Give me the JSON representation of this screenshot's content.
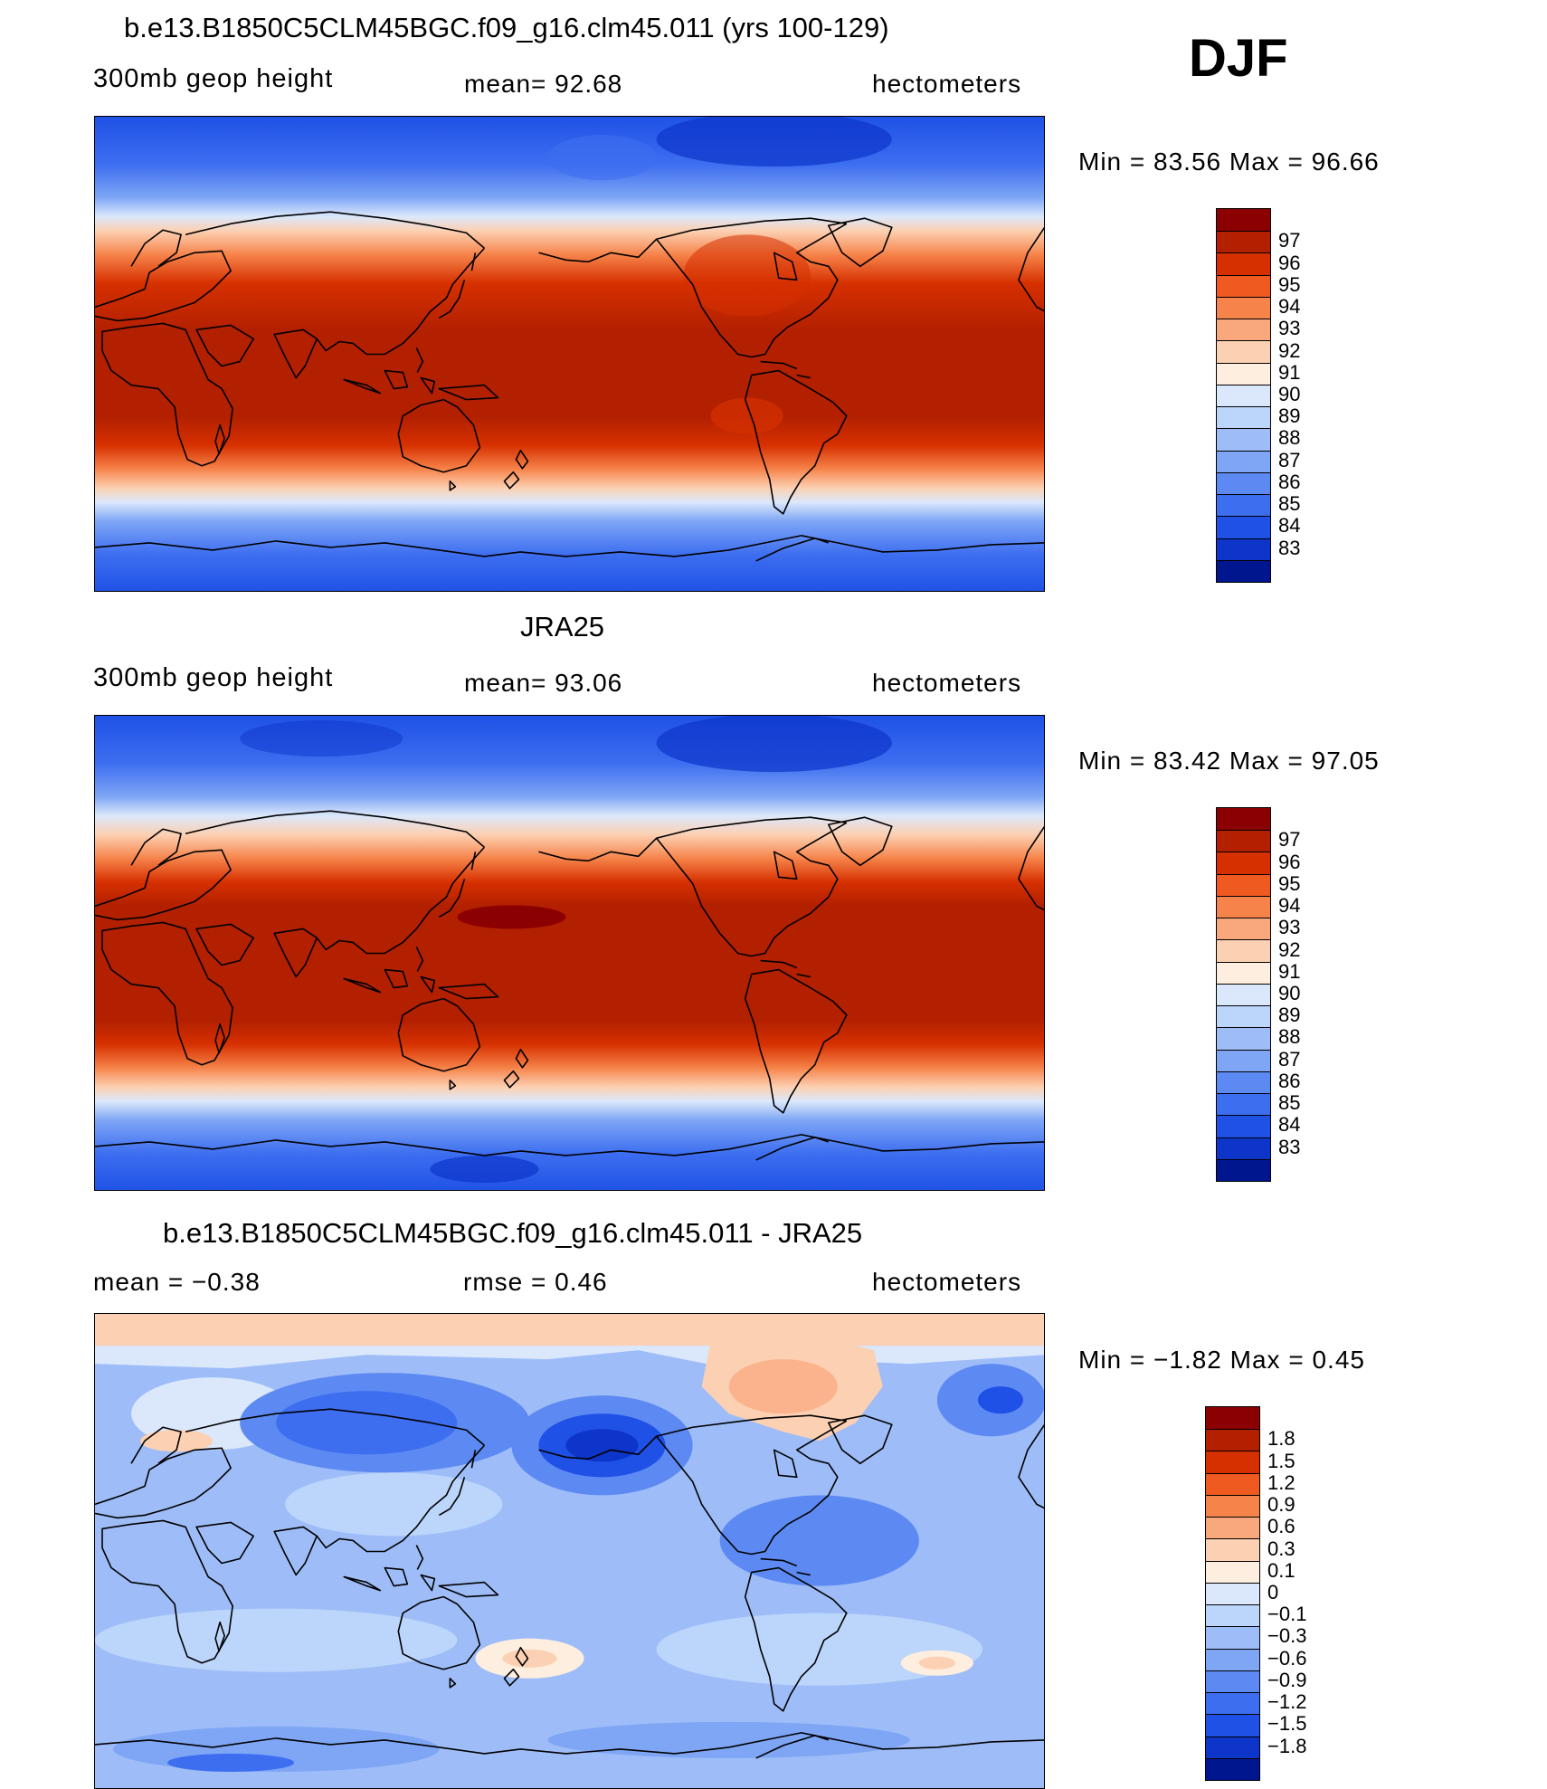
{
  "panel_top": {
    "title": "b.e13.B1850C5CLM45BGC.f09_g16.clm45.011 (yrs 100-129)",
    "variable": "300mb  geop  height",
    "mean_text": "mean=   92.68",
    "units": "hectometers",
    "min_max": "Min  =    83.56  Max  =    96.66"
  },
  "season": "DJF",
  "panel_mid": {
    "title": "JRA25",
    "variable": "300mb  geop  height",
    "mean_text": "mean=   93.06",
    "units": "hectometers",
    "min_max": "Min  =    83.42  Max  =    97.05"
  },
  "panel_diff": {
    "title": "b.e13.B1850C5CLM45BGC.f09_g16.clm45.011 - JRA25",
    "mean_text": "mean  =    −0.38",
    "rmse_text": "rmse  =     0.46",
    "units": "hectometers",
    "min_max": "Min  =    −1.82  Max  =      0.45"
  },
  "colorbar_abs": {
    "colors": [
      "#8b0000",
      "#b22000",
      "#d63000",
      "#ee5a20",
      "#f6834a",
      "#f9a77c",
      "#fcd0b2",
      "#fdeedf",
      "#dbe8fb",
      "#bcd5fb",
      "#9ebdf8",
      "#7ea6f5",
      "#5d8af2",
      "#3d6ef0",
      "#1f51e6",
      "#0d35c9",
      "#00168f"
    ],
    "labels": [
      "97",
      "96",
      "95",
      "94",
      "93",
      "92",
      "91",
      "90",
      "89",
      "88",
      "87",
      "86",
      "85",
      "84",
      "83"
    ]
  },
  "colorbar_diff": {
    "colors": [
      "#8b0000",
      "#b22000",
      "#d63000",
      "#ee5a20",
      "#f6834a",
      "#f9a77c",
      "#fcd0b2",
      "#fdeedf",
      "#dbe8fb",
      "#bcd5fb",
      "#9ebdf8",
      "#7ea6f5",
      "#5d8af2",
      "#3d6ef0",
      "#1f51e6",
      "#0d35c9",
      "#00168f"
    ],
    "labels": [
      "1.8",
      "1.5",
      "1.2",
      "0.9",
      "0.6",
      "0.3",
      "0.1",
      "0",
      "−0.1",
      "−0.3",
      "−0.6",
      "−0.9",
      "−1.2",
      "−1.5",
      "−1.8"
    ]
  }
}
